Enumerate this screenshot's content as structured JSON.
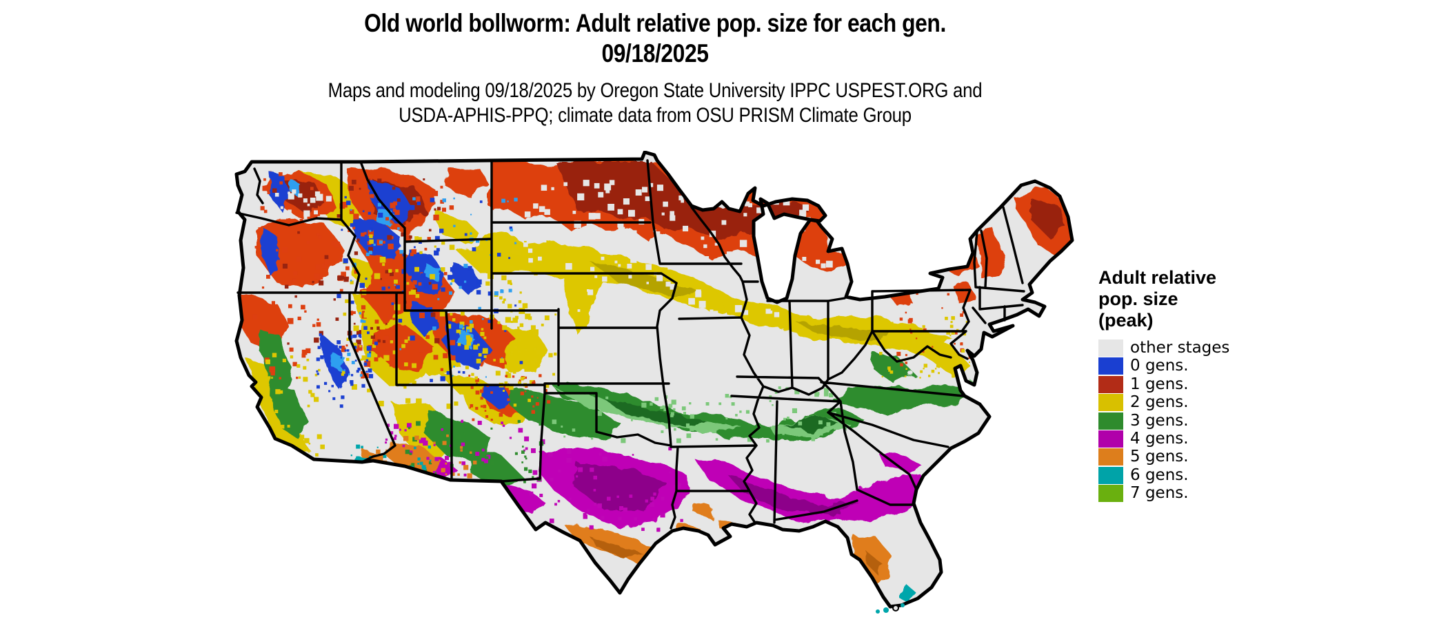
{
  "title": {
    "line1": "Old world bollworm: Adult relative pop. size for each gen.",
    "line2": "09/18/2025"
  },
  "subtitle": {
    "line1": "Maps and modeling 09/18/2025 by Oregon State University IPPC USPEST.ORG and",
    "line2": "USDA-APHIS-PPQ; climate data from OSU PRISM Climate Group"
  },
  "legend": {
    "title": "Adult relative\npop. size\n(peak)",
    "items": [
      {
        "label": "other stages",
        "color": "#e6e6e6"
      },
      {
        "label": "0 gens.",
        "color": "#1a3fd1"
      },
      {
        "label": "1 gens.",
        "color": "#b22c17"
      },
      {
        "label": "2 gens.",
        "color": "#d8c000"
      },
      {
        "label": "3 gens.",
        "color": "#2e8b2d"
      },
      {
        "label": "4 gens.",
        "color": "#b000aa"
      },
      {
        "label": "5 gens.",
        "color": "#dd7e1c"
      },
      {
        "label": "6 gens.",
        "color": "#00a3a8"
      },
      {
        "label": "7 gens.",
        "color": "#6ab00f"
      }
    ]
  },
  "map": {
    "region_label": "Contiguous United States",
    "background_color": "#ffffff",
    "land_base_color": "#e6e6e6",
    "border_color": "#000000",
    "pattern_summary": [
      {
        "area": "Northern tier: N. Montana, North Dakota, N. Minnesota, N. Wisconsin, Michigan UP, N. New England, Adirondacks",
        "category": "1 gens."
      },
      {
        "area": "Band across S. South Dakota, Nebraska, Iowa, Illinois, Indiana, Ohio, Pennsylvania ridges",
        "category": "2 gens."
      },
      {
        "area": "Band across S. Kansas, N. Oklahoma, S. Missouri, Kentucky, Tennessee, S. Virginia / N. North Carolina",
        "category": "3 gens."
      },
      {
        "area": "Band across central Texas, S. Arkansas, Louisiana, Mississippi, Alabama, Georgia, S. South Carolina",
        "category": "4 gens."
      },
      {
        "area": "South Texas, central Florida, S. Arizona",
        "category": "5 gens."
      },
      {
        "area": "Rio Grande valley tip of Texas, S. Florida and Keys, Yuma area",
        "category": "6 gens."
      },
      {
        "area": "Mountain West (Cascades, Sierra Nevada, Rockies) speckled",
        "category": "0 gens. mixed with 1-2 gens. and other stages"
      },
      {
        "area": "California Central Valley, NM/AZ mountains",
        "category": "3 gens."
      }
    ]
  }
}
